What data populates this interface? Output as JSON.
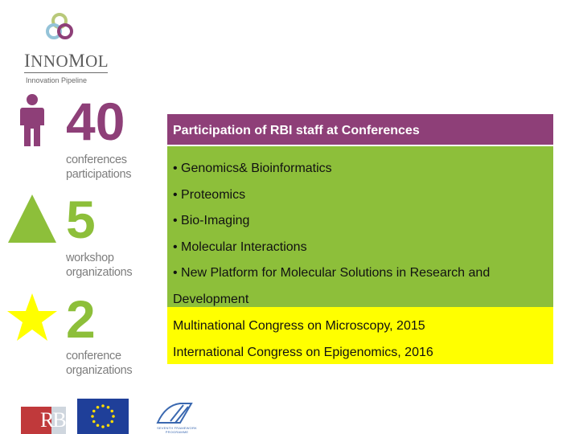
{
  "brand": {
    "name_prefix": "I",
    "name_rest1": "NNO",
    "name_mid": "M",
    "name_rest2": "OL",
    "tagline": "Innovation Pipeline"
  },
  "stats": [
    {
      "number": "40",
      "icon": "person-icon",
      "caption_line1": "conferences",
      "caption_line2": "participations",
      "color": "#8e3f78"
    },
    {
      "number": "5",
      "icon": "triangle-icon",
      "caption_line1": "workshop",
      "caption_line2": "organizations",
      "color": "#8dbf3a"
    },
    {
      "number": "2",
      "icon": "star-icon",
      "caption_line1": "conference",
      "caption_line2": "organizations",
      "color": "#ffff00"
    }
  ],
  "panel": {
    "header": "Participation of RBI staff at Conferences",
    "topics": [
      "• Genomics& Bioinformatics",
      "• Proteomics",
      "• Bio-Imaging",
      "• Molecular Interactions",
      "• New Platform for Molecular Solutions in  Research and"
    ],
    "topic_continuation": "Development",
    "events": [
      "Multinational Congress on Microscopy, 2015",
      "International Congress on Epigenomics, 2016"
    ]
  },
  "footer": {
    "rbi_logo_text": "RB",
    "eu_flag": "eu-flag-icon",
    "fp7_text": "SEVENTH FRAMEWORK PROGRAMME"
  },
  "colors": {
    "purple": "#8e3f78",
    "green": "#8dbf3a",
    "yellow": "#ffff00",
    "gray_text": "#7d7d7d"
  }
}
